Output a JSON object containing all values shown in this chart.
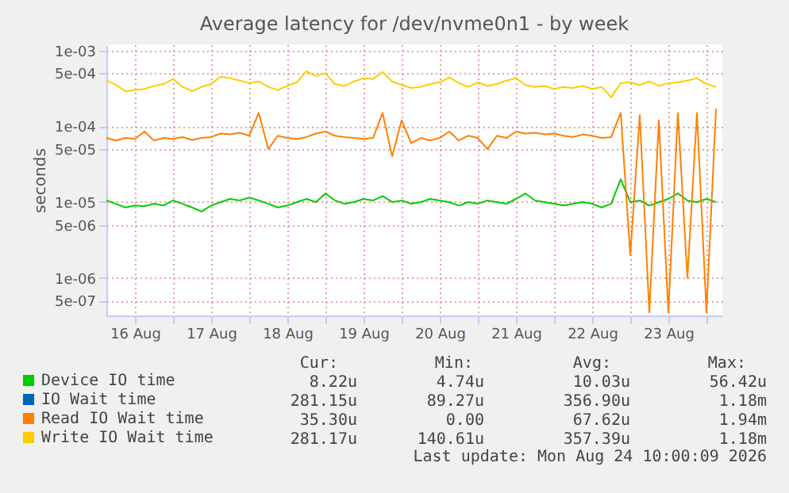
{
  "chart_data": {
    "type": "line",
    "title": "Average latency for /dev/nvme0n1 - by week",
    "ylabel": "seconds",
    "x": [
      "2026-08-16T03:00",
      "2026-08-16T06:00",
      "2026-08-16T09:00",
      "2026-08-16T12:00",
      "2026-08-16T15:00",
      "2026-08-16T18:00",
      "2026-08-16T21:00",
      "2026-08-17T00:00",
      "2026-08-17T03:00",
      "2026-08-17T06:00",
      "2026-08-17T09:00",
      "2026-08-17T12:00",
      "2026-08-17T15:00",
      "2026-08-17T18:00",
      "2026-08-17T21:00",
      "2026-08-18T00:00",
      "2026-08-18T03:00",
      "2026-08-18T06:00",
      "2026-08-18T09:00",
      "2026-08-18T12:00",
      "2026-08-18T15:00",
      "2026-08-18T18:00",
      "2026-08-18T21:00",
      "2026-08-19T00:00",
      "2026-08-19T03:00",
      "2026-08-19T06:00",
      "2026-08-19T09:00",
      "2026-08-19T12:00",
      "2026-08-19T15:00",
      "2026-08-19T18:00",
      "2026-08-19T21:00",
      "2026-08-20T00:00",
      "2026-08-20T03:00",
      "2026-08-20T06:00",
      "2026-08-20T09:00",
      "2026-08-20T12:00",
      "2026-08-20T15:00",
      "2026-08-20T18:00",
      "2026-08-20T21:00",
      "2026-08-21T00:00",
      "2026-08-21T03:00",
      "2026-08-21T06:00",
      "2026-08-21T09:00",
      "2026-08-21T12:00",
      "2026-08-21T15:00",
      "2026-08-21T18:00",
      "2026-08-21T21:00",
      "2026-08-22T00:00",
      "2026-08-22T03:00",
      "2026-08-22T06:00",
      "2026-08-22T09:00",
      "2026-08-22T12:00",
      "2026-08-22T15:00",
      "2026-08-22T18:00",
      "2026-08-22T21:00",
      "2026-08-23T00:00",
      "2026-08-23T03:00",
      "2026-08-23T06:00",
      "2026-08-23T09:00",
      "2026-08-23T12:00",
      "2026-08-23T15:00",
      "2026-08-23T18:00",
      "2026-08-23T21:00",
      "2026-08-24T00:00",
      "2026-08-24T03:00"
    ],
    "series": [
      {
        "name": "Device IO time",
        "color": "#00cc00",
        "values": [
          1.05e-05,
          9.5e-06,
          8.5e-06,
          9e-06,
          8.8e-06,
          9.5e-06,
          9e-06,
          1.05e-05,
          9.5e-06,
          8.5e-06,
          7.5e-06,
          9e-06,
          1e-05,
          1.1e-05,
          1.05e-05,
          1.15e-05,
          1.05e-05,
          9.5e-06,
          8.5e-06,
          9e-06,
          1e-05,
          1.1e-05,
          1e-05,
          1.3e-05,
          1.05e-05,
          9.5e-06,
          1e-05,
          1.1e-05,
          1.05e-05,
          1.2e-05,
          1e-05,
          1.05e-05,
          9.5e-06,
          1e-05,
          1.1e-05,
          1.05e-05,
          1e-05,
          9e-06,
          1e-05,
          9.5e-06,
          1.05e-05,
          1e-05,
          9.5e-06,
          1.1e-05,
          1.3e-05,
          1.05e-05,
          1e-05,
          9.5e-06,
          9e-06,
          9.5e-06,
          1e-05,
          9.5e-06,
          8.5e-06,
          9.5e-06,
          2e-05,
          1e-05,
          1.05e-05,
          9e-06,
          1e-05,
          1.1e-05,
          1.3e-05,
          1.05e-05,
          1e-05,
          1.1e-05,
          1e-05
        ]
      },
      {
        "name": "IO Wait time",
        "color": "#0066b3",
        "values": [
          null,
          null,
          null,
          null,
          null,
          null,
          null,
          null,
          null,
          null,
          null,
          null,
          null,
          null,
          null,
          null,
          null,
          null,
          null,
          null,
          null,
          null,
          null,
          null,
          null,
          null,
          null,
          null,
          null,
          null,
          null,
          null,
          null,
          null,
          null,
          null,
          null,
          null,
          null,
          null,
          null,
          null,
          null,
          null,
          null,
          null,
          null,
          null,
          null,
          null,
          null,
          null,
          null,
          null,
          null,
          null,
          null,
          null,
          null,
          null,
          null,
          null,
          null,
          null,
          null
        ]
      },
      {
        "name": "Read IO Wait time",
        "color": "#ff8000",
        "values": [
          7e-05,
          6.5e-05,
          7e-05,
          6.8e-05,
          8.5e-05,
          6.5e-05,
          7e-05,
          6.8e-05,
          7.2e-05,
          6.6e-05,
          7e-05,
          7.2e-05,
          8e-05,
          7.8e-05,
          8.2e-05,
          7.5e-05,
          0.00015,
          5e-05,
          7.5e-05,
          7e-05,
          6.8e-05,
          7.2e-05,
          8e-05,
          8.5e-05,
          7.5e-05,
          7.2e-05,
          7e-05,
          6.8e-05,
          7e-05,
          0.00015,
          4e-05,
          0.00012,
          6e-05,
          7e-05,
          6.5e-05,
          7e-05,
          8.5e-05,
          6.5e-05,
          7.5e-05,
          7e-05,
          5e-05,
          7.5e-05,
          7e-05,
          8.5e-05,
          8e-05,
          8.2e-05,
          7.8e-05,
          8e-05,
          7.5e-05,
          7.2e-05,
          7.8e-05,
          7.5e-05,
          7e-05,
          7.2e-05,
          0.00015,
          2e-06,
          0.00014,
          3.5e-07,
          0.00012,
          3.5e-07,
          0.00015,
          1e-06,
          0.00015,
          3.5e-07,
          0.00017
        ]
      },
      {
        "name": "Write IO Wait time",
        "color": "#ffcc00",
        "values": [
          0.0004,
          0.00035,
          0.00029,
          0.0003,
          0.00031,
          0.00034,
          0.00036,
          0.00042,
          0.00033,
          0.00029,
          0.00033,
          0.00036,
          0.00045,
          0.00043,
          0.0004,
          0.00037,
          0.00039,
          0.00033,
          0.0003,
          0.00034,
          0.00038,
          0.00053,
          0.00046,
          0.0005,
          0.00036,
          0.00034,
          0.00039,
          0.00043,
          0.00042,
          0.00052,
          0.00039,
          0.00035,
          0.00032,
          0.00033,
          0.00036,
          0.00038,
          0.00044,
          0.00037,
          0.00033,
          0.00038,
          0.00034,
          0.00036,
          0.0004,
          0.00043,
          0.00035,
          0.00033,
          0.00034,
          0.00031,
          0.00033,
          0.00032,
          0.00034,
          0.00031,
          0.00033,
          0.00024,
          0.00037,
          0.00038,
          0.00035,
          0.00039,
          0.00034,
          0.00037,
          0.00038,
          0.0004,
          0.00043,
          0.00036,
          0.00033
        ]
      }
    ],
    "xlim": [
      "2026-08-16T03:00",
      "2026-08-24T05:00"
    ],
    "xticks": [
      {
        "value": "2026-08-16T12:00",
        "label": "16 Aug"
      },
      {
        "value": "2026-08-17T00:00",
        "label": null
      },
      {
        "value": "2026-08-17T12:00",
        "label": "17 Aug"
      },
      {
        "value": "2026-08-18T00:00",
        "label": null
      },
      {
        "value": "2026-08-18T12:00",
        "label": "18 Aug"
      },
      {
        "value": "2026-08-19T00:00",
        "label": null
      },
      {
        "value": "2026-08-19T12:00",
        "label": "19 Aug"
      },
      {
        "value": "2026-08-20T00:00",
        "label": null
      },
      {
        "value": "2026-08-20T12:00",
        "label": "20 Aug"
      },
      {
        "value": "2026-08-21T00:00",
        "label": null
      },
      {
        "value": "2026-08-21T12:00",
        "label": "21 Aug"
      },
      {
        "value": "2026-08-22T00:00",
        "label": null
      },
      {
        "value": "2026-08-22T12:00",
        "label": "22 Aug"
      },
      {
        "value": "2026-08-23T00:00",
        "label": null
      },
      {
        "value": "2026-08-23T12:00",
        "label": "23 Aug"
      },
      {
        "value": "2026-08-24T00:00",
        "label": null
      }
    ],
    "ylim": [
      3.2e-07,
      0.0012
    ],
    "yticks": [
      {
        "value": 0.001,
        "label": "1e-03"
      },
      {
        "value": 0.0005,
        "label": "5e-04"
      },
      {
        "value": 0.0001,
        "label": "1e-04"
      },
      {
        "value": 5e-05,
        "label": "5e-05"
      },
      {
        "value": 1e-05,
        "label": "1e-05"
      },
      {
        "value": 5e-06,
        "label": "5e-06"
      },
      {
        "value": 1e-06,
        "label": "1e-06"
      },
      {
        "value": 5e-07,
        "label": "5e-07"
      }
    ],
    "log": true,
    "grid": true,
    "legend": "bottom",
    "annotations": [
      "Cur: Min: Avg: Max:",
      "8.22u 4.74u 10.03u 56.42u",
      "281.15u 89.27u 356.90u 1.18m",
      "35.30u 0.00 67.62u 1.94m",
      "281.17u 140.61u 357.39u 1.18m",
      "Last update: Mon Aug 24 10:00:09 2026"
    ]
  }
}
